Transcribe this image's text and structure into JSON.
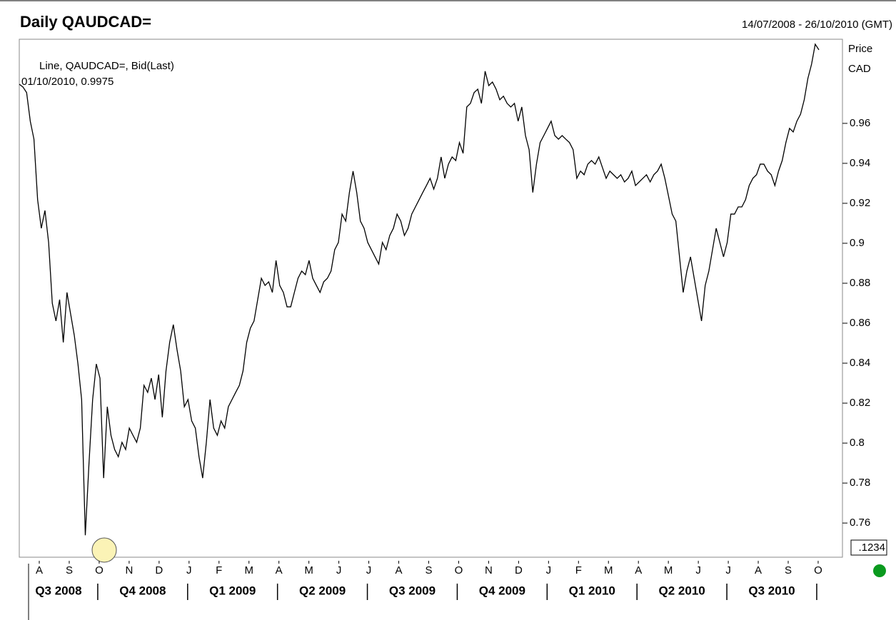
{
  "chart_data": {
    "type": "line",
    "title": "Daily QAUDCAD=",
    "date_range": "14/07/2008 - 26/10/2010 (GMT)",
    "axis_label": [
      "Price",
      "CAD"
    ],
    "annotation": [
      "Line, QAUDCAD=, Bid(Last)",
      "01/10/2010, 0.9975"
    ],
    "price_box": ".1234",
    "month_labels": [
      "A",
      "S",
      "O",
      "N",
      "D",
      "J",
      "F",
      "M",
      "A",
      "M",
      "J",
      "J",
      "A",
      "S",
      "O",
      "N",
      "D",
      "J",
      "F",
      "M",
      "A",
      "M",
      "J",
      "J",
      "A",
      "S",
      "O"
    ],
    "quarter_labels": [
      "Q3 2008",
      "Q4 2008",
      "Q1 2009",
      "Q2 2009",
      "Q3 2009",
      "Q4 2009",
      "Q1 2010",
      "Q2 2010",
      "Q3 2010"
    ],
    "ylim": [
      0.7429,
      1.0021
    ],
    "yticks": [
      0.76,
      0.78,
      0.8,
      0.82,
      0.84,
      0.86,
      0.88,
      0.9,
      0.92,
      0.94,
      0.96
    ],
    "series": [
      {
        "name": "QAUDCAD=",
        "color": "#000000",
        "values": [
          0.9796,
          0.9782,
          0.9754,
          0.9611,
          0.9521,
          0.9218,
          0.9075,
          0.9164,
          0.9004,
          0.87,
          0.8611,
          0.8718,
          0.8504,
          0.8754,
          0.8646,
          0.8539,
          0.8396,
          0.8218,
          0.7539,
          0.7896,
          0.8218,
          0.8396,
          0.8325,
          0.7825,
          0.8182,
          0.8039,
          0.7968,
          0.7932,
          0.8004,
          0.7968,
          0.8075,
          0.8039,
          0.8004,
          0.8075,
          0.8289,
          0.8254,
          0.8325,
          0.8218,
          0.8343,
          0.8129,
          0.8361,
          0.8504,
          0.8593,
          0.8468,
          0.8361,
          0.8182,
          0.8218,
          0.8111,
          0.8075,
          0.7932,
          0.7825,
          0.8004,
          0.8218,
          0.8075,
          0.8039,
          0.8111,
          0.8075,
          0.8182,
          0.8218,
          0.8254,
          0.8289,
          0.8361,
          0.8504,
          0.8575,
          0.8611,
          0.8718,
          0.8825,
          0.8789,
          0.8807,
          0.8754,
          0.8914,
          0.8789,
          0.8754,
          0.8682,
          0.8682,
          0.8754,
          0.8825,
          0.8861,
          0.8843,
          0.8914,
          0.8825,
          0.8789,
          0.8754,
          0.8807,
          0.8825,
          0.8861,
          0.8968,
          0.9004,
          0.9146,
          0.9111,
          0.9254,
          0.9361,
          0.9254,
          0.9111,
          0.9075,
          0.9004,
          0.8968,
          0.8932,
          0.8896,
          0.9004,
          0.8968,
          0.9039,
          0.9075,
          0.9146,
          0.9111,
          0.9039,
          0.9075,
          0.9146,
          0.9182,
          0.9218,
          0.9254,
          0.9289,
          0.9325,
          0.9271,
          0.9325,
          0.9432,
          0.9325,
          0.9396,
          0.9432,
          0.9414,
          0.9504,
          0.945,
          0.9682,
          0.97,
          0.9754,
          0.9771,
          0.97,
          0.9861,
          0.9789,
          0.9807,
          0.9771,
          0.9718,
          0.9736,
          0.97,
          0.9682,
          0.97,
          0.9611,
          0.9682,
          0.9539,
          0.9468,
          0.9254,
          0.9396,
          0.9504,
          0.9539,
          0.9575,
          0.9611,
          0.9539,
          0.9521,
          0.9539,
          0.9521,
          0.9504,
          0.9468,
          0.9325,
          0.9361,
          0.9343,
          0.9396,
          0.9414,
          0.9396,
          0.9432,
          0.9378,
          0.9325,
          0.9361,
          0.9343,
          0.9325,
          0.9343,
          0.9307,
          0.9325,
          0.9361,
          0.9289,
          0.9307,
          0.9325,
          0.9343,
          0.9307,
          0.9343,
          0.9361,
          0.9396,
          0.9325,
          0.9236,
          0.9146,
          0.9111,
          0.8932,
          0.8754,
          0.8861,
          0.8932,
          0.8825,
          0.8718,
          0.8611,
          0.8789,
          0.8861,
          0.8968,
          0.9075,
          0.9004,
          0.8932,
          0.9004,
          0.9146,
          0.9146,
          0.9182,
          0.9182,
          0.9218,
          0.9289,
          0.9325,
          0.9343,
          0.9396,
          0.9396,
          0.9361,
          0.9343,
          0.9289,
          0.9361,
          0.9414,
          0.9504,
          0.9575,
          0.9557,
          0.9611,
          0.9646,
          0.9718,
          0.9825,
          0.9896,
          0.9996,
          0.9968
        ]
      }
    ]
  }
}
